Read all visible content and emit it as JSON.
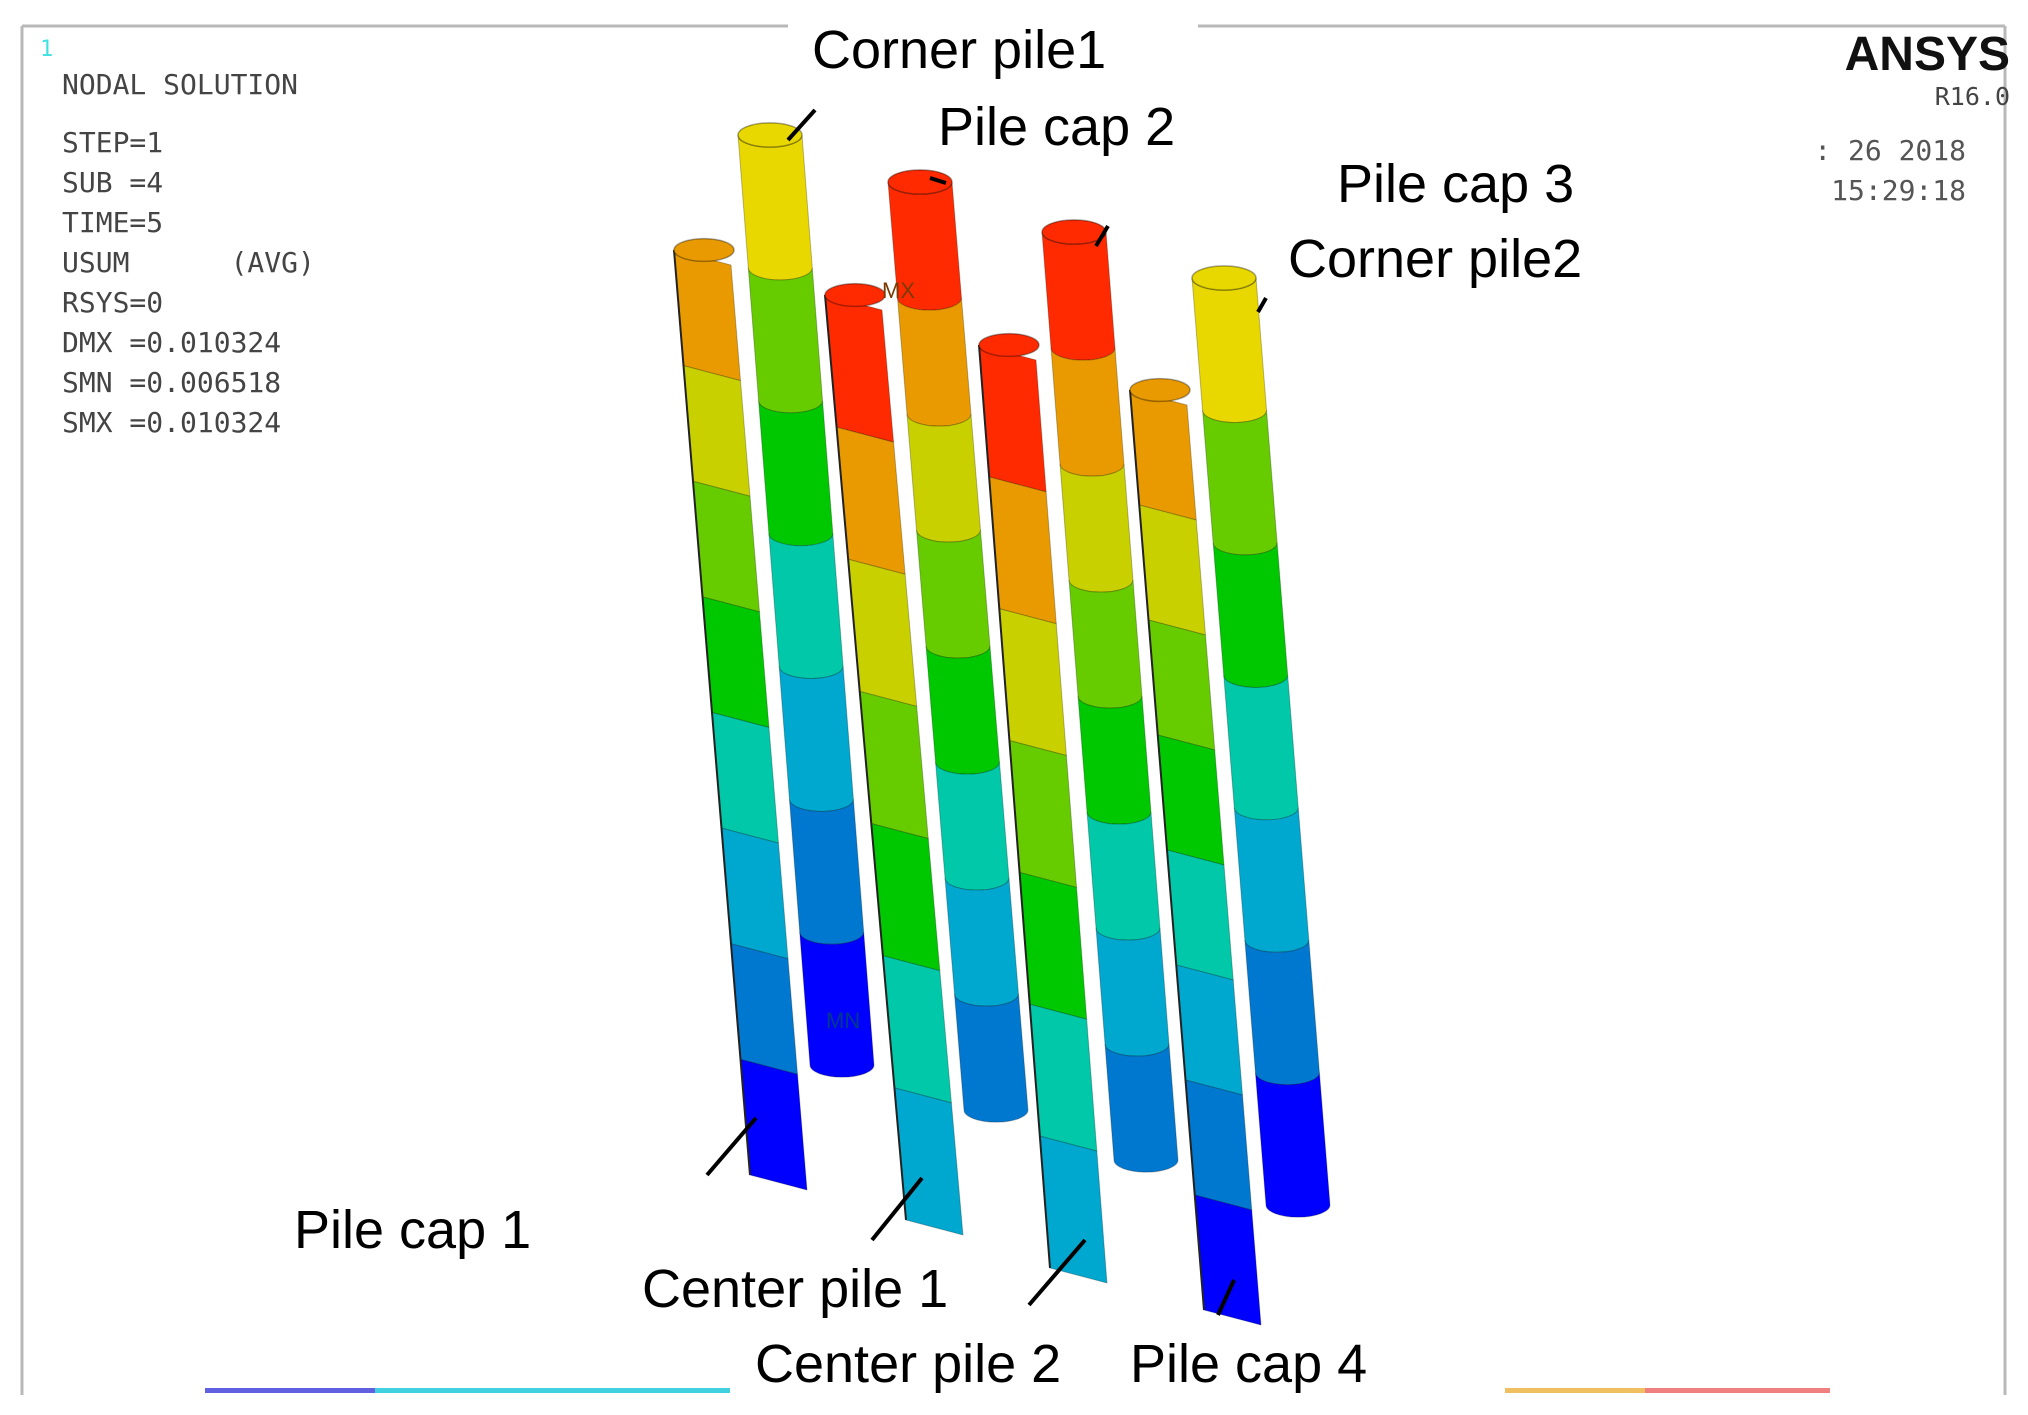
{
  "frame_number": "1",
  "info": {
    "title": "NODAL SOLUTION",
    "lines": [
      "STEP=1",
      "SUB =4",
      "TIME=5",
      "USUM      (AVG)",
      "RSYS=0",
      "DMX =0.010324",
      "SMN =0.006518",
      "SMX =0.010324"
    ]
  },
  "brand": {
    "name": "ANSYS",
    "version": "R16.0"
  },
  "datetime": {
    "date": ": 26 2018",
    "time": "15:29:18"
  },
  "markers": {
    "mx": "MX",
    "mn": "MN"
  },
  "labels": {
    "corner_pile1": "Corner pile1",
    "pile_cap2": "Pile cap 2",
    "pile_cap3": "Pile cap 3",
    "corner_pile2": "Corner pile2",
    "pile_cap1": "Pile cap 1",
    "center_pile1": "Center pile 1",
    "center_pile2": "Center pile 2",
    "pile_cap4": "Pile cap 4"
  },
  "contour_colors": [
    "#0000ff",
    "#0078d0",
    "#00a8d0",
    "#00c8a8",
    "#00c800",
    "#66cc00",
    "#c8d000",
    "#e8d800",
    "#e89a00",
    "#ff2a00"
  ],
  "piles": [
    {
      "id": "pile-cap-1",
      "shape": "half",
      "top_color": "#e89a00",
      "bands": [
        "#e89a00",
        "#c8d000",
        "#66cc00",
        "#00c800",
        "#00c8a8",
        "#00a8d0",
        "#0078d0",
        "#0000ff"
      ]
    },
    {
      "id": "corner-pile-1",
      "shape": "full",
      "top_color": "#e8d800",
      "bands": [
        "#e8d800",
        "#66cc00",
        "#00c800",
        "#00c8a8",
        "#00a8d0",
        "#0078d0",
        "#0000ff"
      ]
    },
    {
      "id": "center-pile-1",
      "shape": "half",
      "top_color": "#ff2a00",
      "bands": [
        "#ff2a00",
        "#e89a00",
        "#c8d000",
        "#66cc00",
        "#00c800",
        "#00c8a8",
        "#00a8d0"
      ]
    },
    {
      "id": "pile-cap-2",
      "shape": "full",
      "top_color": "#ff2a00",
      "bands": [
        "#ff2a00",
        "#e89a00",
        "#c8d000",
        "#66cc00",
        "#00c800",
        "#00c8a8",
        "#00a8d0",
        "#0078d0"
      ]
    },
    {
      "id": "center-pile-2",
      "shape": "half",
      "top_color": "#ff2a00",
      "bands": [
        "#ff2a00",
        "#e89a00",
        "#c8d000",
        "#66cc00",
        "#00c800",
        "#00c8a8",
        "#00a8d0"
      ]
    },
    {
      "id": "pile-cap-3",
      "shape": "full",
      "top_color": "#ff2a00",
      "bands": [
        "#ff2a00",
        "#e89a00",
        "#c8d000",
        "#66cc00",
        "#00c800",
        "#00c8a8",
        "#00a8d0",
        "#0078d0"
      ]
    },
    {
      "id": "pile-cap-4",
      "shape": "half",
      "top_color": "#e89a00",
      "bands": [
        "#e89a00",
        "#c8d000",
        "#66cc00",
        "#00c800",
        "#00c8a8",
        "#00a8d0",
        "#0078d0",
        "#0000ff"
      ]
    },
    {
      "id": "corner-pile-2",
      "shape": "full",
      "top_color": "#e8d800",
      "bands": [
        "#e8d800",
        "#66cc00",
        "#00c800",
        "#00c8a8",
        "#00a8d0",
        "#0078d0",
        "#0000ff"
      ]
    }
  ]
}
